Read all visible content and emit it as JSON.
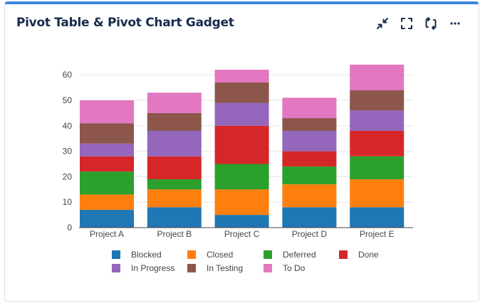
{
  "gadget": {
    "title": "Pivot Table & Pivot Chart Gadget",
    "toolbar": [
      {
        "name": "minimize-icon",
        "label": "Minimize"
      },
      {
        "name": "fullscreen-icon",
        "label": "Full screen"
      },
      {
        "name": "refresh-icon",
        "label": "Refresh"
      },
      {
        "name": "more-icon",
        "label": "More actions"
      }
    ]
  },
  "chart_data": {
    "type": "bar",
    "stacked": true,
    "categories": [
      "Project A",
      "Project B",
      "Project C",
      "Project D",
      "Project E"
    ],
    "ylim": [
      0,
      65
    ],
    "yticks": [
      0,
      10,
      20,
      30,
      40,
      50,
      60
    ],
    "series": [
      {
        "name": "Blocked",
        "color": "#1f77b4",
        "values": [
          7,
          8,
          5,
          8,
          8
        ]
      },
      {
        "name": "Closed",
        "color": "#ff7f0e",
        "values": [
          6,
          7,
          10,
          9,
          11
        ]
      },
      {
        "name": "Deferred",
        "color": "#2ca02c",
        "values": [
          9,
          4,
          10,
          7,
          9
        ]
      },
      {
        "name": "Done",
        "color": "#d62728",
        "values": [
          6,
          9,
          15,
          6,
          10
        ]
      },
      {
        "name": "In Progress",
        "color": "#9467bd",
        "values": [
          5,
          10,
          9,
          8,
          8
        ]
      },
      {
        "name": "In Testing",
        "color": "#8c564b",
        "values": [
          8,
          7,
          8,
          5,
          8
        ]
      },
      {
        "name": "To Do",
        "color": "#e377c2",
        "values": [
          9,
          8,
          5,
          8,
          10
        ]
      }
    ],
    "legend_position": "bottom"
  }
}
